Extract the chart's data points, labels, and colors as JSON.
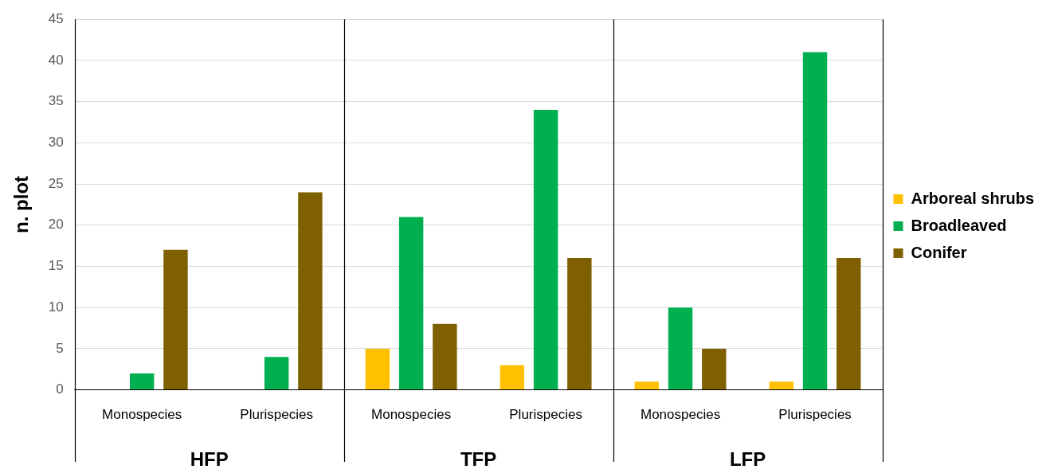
{
  "chart_data": {
    "type": "bar",
    "ylabel": "n. plot",
    "categories": [
      "Monospecies",
      "Plurispecies",
      "Monospecies",
      "Plurispecies",
      "Monospecies",
      "Plurispecies"
    ],
    "series": [
      {
        "name": "Arboreal shrubs",
        "color": "#ffc000",
        "values": [
          0,
          0,
          5,
          3,
          1,
          1
        ]
      },
      {
        "name": "Broadleaved",
        "color": "#00b050",
        "values": [
          2,
          4,
          21,
          34,
          10,
          41
        ]
      },
      {
        "name": "Conifer",
        "color": "#7f6000",
        "values": [
          17,
          24,
          8,
          16,
          5,
          16
        ]
      }
    ],
    "annotations": [
      "HFP",
      "TFP",
      "LFP"
    ],
    "ylim": [
      0,
      45
    ],
    "yticks": [
      0,
      5,
      10,
      15,
      20,
      25,
      30,
      35,
      40,
      45
    ],
    "grid": "y",
    "legend": "right"
  }
}
